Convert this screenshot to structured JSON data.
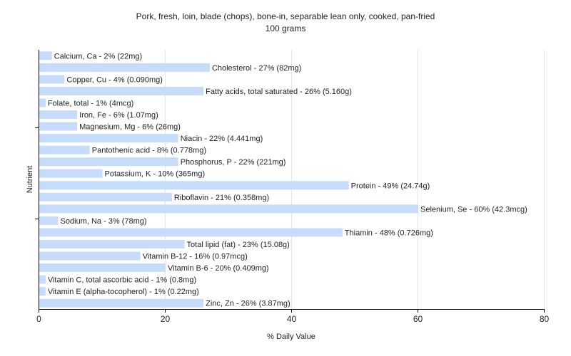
{
  "chart_data": {
    "type": "bar",
    "orientation": "horizontal",
    "title": "Pork, fresh, loin, blade (chops), bone-in, separable lean only, cooked, pan-fried",
    "subtitle": "100 grams",
    "xlabel": "% Daily Value",
    "ylabel": "Nutrient",
    "xlim": [
      0,
      80
    ],
    "xticks": [
      "0",
      "20",
      "40",
      "60",
      "80"
    ],
    "grid": true,
    "bar_color": "#c6dcfa",
    "categories": [
      "Calcium, Ca",
      "Cholesterol",
      "Copper, Cu",
      "Fatty acids, total saturated",
      "Folate, total",
      "Iron, Fe",
      "Magnesium, Mg",
      "Niacin",
      "Pantothenic acid",
      "Phosphorus, P",
      "Potassium, K",
      "Protein",
      "Riboflavin",
      "Selenium, Se",
      "Sodium, Na",
      "Thiamin",
      "Total lipid (fat)",
      "Vitamin B-12",
      "Vitamin B-6",
      "Vitamin C, total ascorbic acid",
      "Vitamin E (alpha-tocopherol)",
      "Zinc, Zn"
    ],
    "values": [
      2,
      27,
      4,
      26,
      1,
      6,
      6,
      22,
      8,
      22,
      10,
      49,
      21,
      60,
      3,
      48,
      23,
      16,
      20,
      1,
      1,
      26
    ],
    "labels": [
      "Calcium, Ca - 2% (22mg)",
      "Cholesterol - 27% (82mg)",
      "Copper, Cu - 4% (0.090mg)",
      "Fatty acids, total saturated - 26% (5.160g)",
      "Folate, total - 1% (4mcg)",
      "Iron, Fe - 6% (1.07mg)",
      "Magnesium, Mg - 6% (26mg)",
      "Niacin - 22% (4.441mg)",
      "Pantothenic acid - 8% (0.778mg)",
      "Phosphorus, P - 22% (221mg)",
      "Potassium, K - 10% (365mg)",
      "Protein - 49% (24.74g)",
      "Riboflavin - 21% (0.358mg)",
      "Selenium, Se - 60% (42.3mcg)",
      "Sodium, Na - 3% (78mg)",
      "Thiamin - 48% (0.726mg)",
      "Total lipid (fat) - 23% (15.08g)",
      "Vitamin B-12 - 16% (0.97mcg)",
      "Vitamin B-6 - 20% (0.409mg)",
      "Vitamin C, total ascorbic acid - 1% (0.8mg)",
      "Vitamin E (alpha-tocopherol) - 1% (0.22mg)",
      "Zinc, Zn - 26% (3.87mg)"
    ]
  }
}
